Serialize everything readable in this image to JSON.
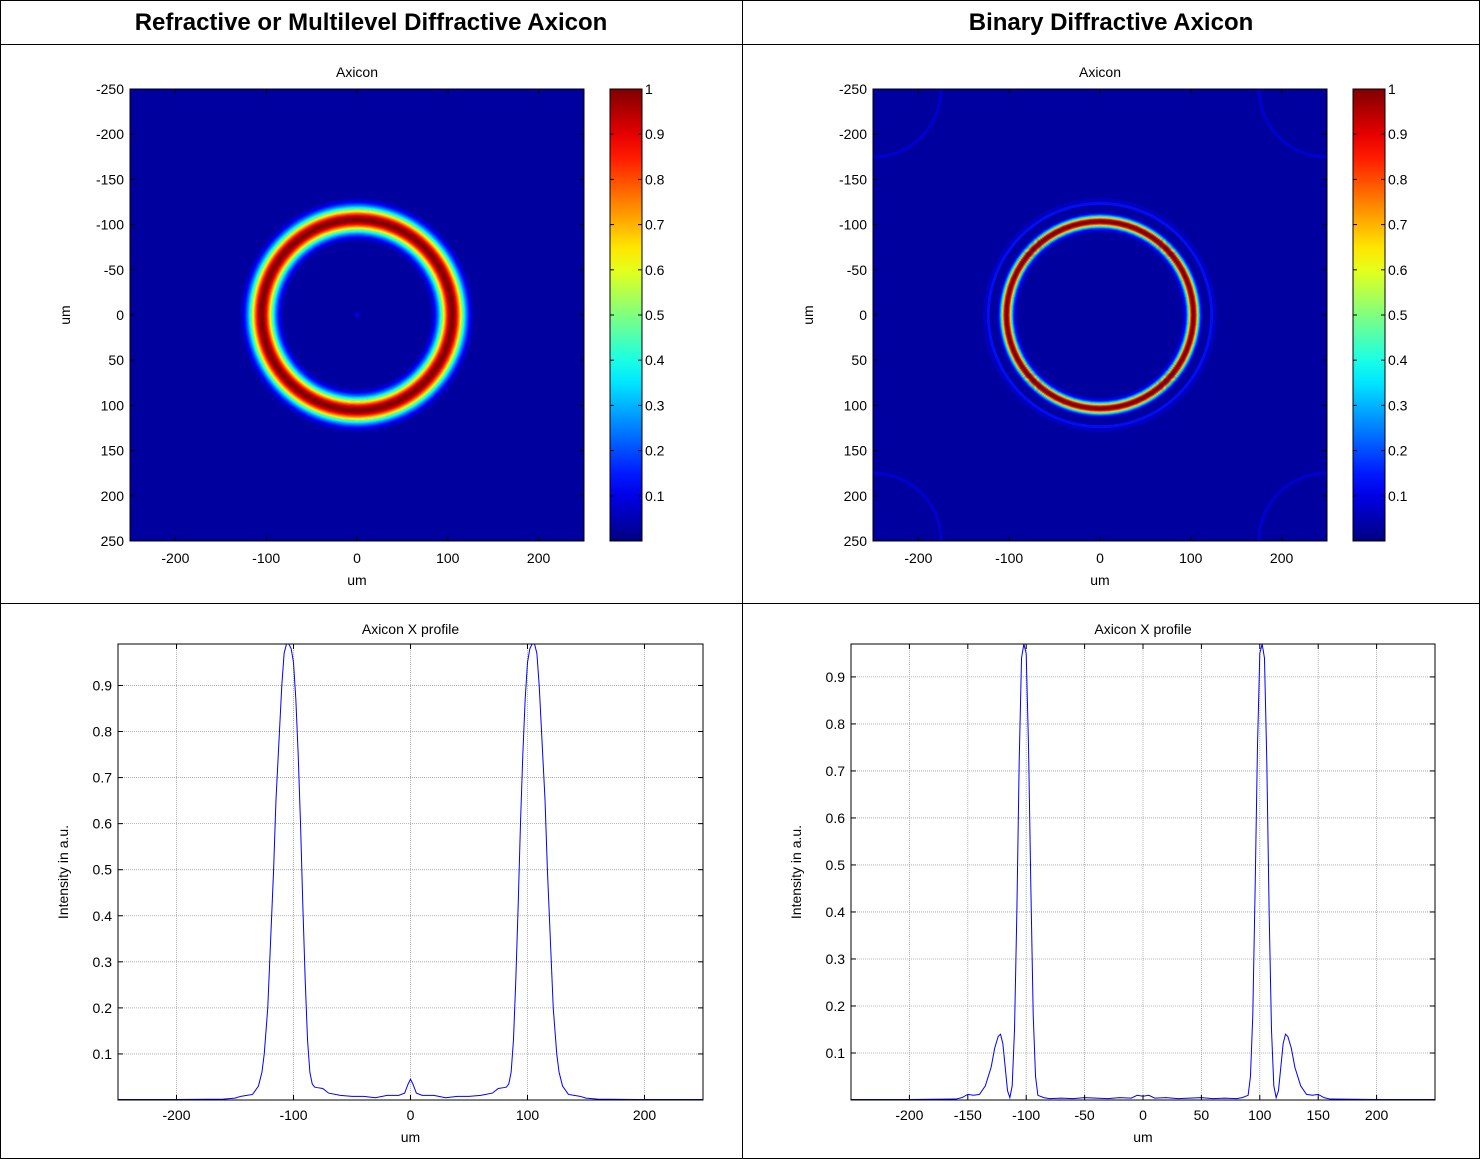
{
  "table": {
    "left_header": "Refractive or Multilevel Diffractive Axicon",
    "right_header": "Binary Diffractive Axicon"
  },
  "colors": {
    "profile_line": "#0000ff",
    "grid_line": "#a0a0a0",
    "jet_low": "#00008f",
    "jet_background": "#00009f",
    "jet_high": "#800000"
  },
  "chart_data": [
    {
      "id": "left-heatmap",
      "type": "heatmap",
      "title": "Axicon",
      "xlabel": "um",
      "ylabel": "um",
      "xlim": [
        -250,
        250
      ],
      "ylim": [
        -250,
        250
      ],
      "y_reversed": true,
      "x_ticks": [
        -200,
        -100,
        0,
        100,
        200
      ],
      "y_ticks": [
        -250,
        -200,
        -150,
        -100,
        -50,
        0,
        50,
        100,
        150,
        200,
        250
      ],
      "colormap": "jet",
      "colorbar": {
        "min": 0,
        "max": 1,
        "ticks": [
          0.1,
          0.2,
          0.3,
          0.4,
          0.5,
          0.6,
          0.7,
          0.8,
          0.9,
          1
        ],
        "tick_labels": [
          "0.1",
          "0.2",
          "0.3",
          "0.4",
          "0.5",
          "0.6",
          "0.7",
          "0.8",
          "0.9",
          "1"
        ]
      },
      "ring": {
        "center": [
          0,
          0
        ],
        "radius": 105,
        "width_fwhm": 22,
        "peak": 1.0,
        "side_ring_radius": null,
        "center_spot": 0.04
      },
      "background": 0.03
    },
    {
      "id": "right-heatmap",
      "type": "heatmap",
      "title": "Axicon",
      "xlabel": "um",
      "ylabel": "um",
      "xlim": [
        -250,
        250
      ],
      "ylim": [
        -250,
        250
      ],
      "y_reversed": true,
      "x_ticks": [
        -200,
        -100,
        0,
        100,
        200
      ],
      "y_ticks": [
        -250,
        -200,
        -150,
        -100,
        -50,
        0,
        50,
        100,
        150,
        200,
        250
      ],
      "colormap": "jet",
      "colorbar": {
        "min": 0,
        "max": 1,
        "ticks": [
          0.1,
          0.2,
          0.3,
          0.4,
          0.5,
          0.6,
          0.7,
          0.8,
          0.9,
          1
        ],
        "tick_labels": [
          "0.1",
          "0.2",
          "0.3",
          "0.4",
          "0.5",
          "0.6",
          "0.7",
          "0.8",
          "0.9",
          "1"
        ]
      },
      "ring": {
        "center": [
          0,
          0
        ],
        "radius": 103,
        "width_fwhm": 10,
        "peak": 1.0,
        "side_ring_radius": 123,
        "side_ring_peak": 0.14,
        "inner_side_ring_radius": 93,
        "inner_side_ring_peak": 0.1
      },
      "background": 0.03
    },
    {
      "id": "left-profile",
      "type": "line",
      "title": "Axicon X profile",
      "xlabel": "um",
      "ylabel": "Intensity in a.u.",
      "xlim": [
        -250,
        250
      ],
      "ylim": [
        0,
        0.99
      ],
      "x_ticks": [
        -200,
        -100,
        0,
        100,
        200
      ],
      "y_ticks": [
        0.1,
        0.2,
        0.3,
        0.4,
        0.5,
        0.6,
        0.7,
        0.8,
        0.9
      ],
      "grid": true,
      "series": [
        {
          "x": [
            -250,
            -200,
            -160,
            -150,
            -145,
            -140,
            -135,
            -130,
            -127,
            -125,
            -122,
            -120,
            -117,
            -115,
            -112,
            -110,
            -108,
            -106,
            -104,
            -102,
            -100,
            -98,
            -96,
            -94,
            -92,
            -90,
            -88,
            -86,
            -84,
            -82,
            -80,
            -75,
            -70,
            -60,
            -50,
            -40,
            -30,
            -20,
            -10,
            -5,
            -2,
            0,
            2,
            5,
            10,
            20,
            30,
            40,
            50,
            60,
            70,
            75,
            80,
            82,
            84,
            86,
            88,
            90,
            92,
            94,
            96,
            98,
            100,
            102,
            104,
            106,
            108,
            110,
            112,
            115,
            117,
            120,
            122,
            125,
            127,
            130,
            135,
            140,
            145,
            150,
            160,
            200,
            250
          ],
          "y": [
            0.001,
            0.001,
            0.002,
            0.004,
            0.008,
            0.01,
            0.012,
            0.03,
            0.06,
            0.1,
            0.2,
            0.32,
            0.5,
            0.65,
            0.8,
            0.9,
            0.97,
            0.99,
            0.99,
            0.98,
            0.95,
            0.87,
            0.75,
            0.6,
            0.42,
            0.26,
            0.13,
            0.06,
            0.035,
            0.028,
            0.027,
            0.025,
            0.015,
            0.01,
            0.008,
            0.008,
            0.005,
            0.01,
            0.01,
            0.015,
            0.035,
            0.045,
            0.035,
            0.015,
            0.01,
            0.01,
            0.005,
            0.008,
            0.008,
            0.01,
            0.015,
            0.025,
            0.027,
            0.028,
            0.035,
            0.06,
            0.13,
            0.26,
            0.42,
            0.6,
            0.75,
            0.87,
            0.95,
            0.98,
            0.99,
            0.99,
            0.97,
            0.9,
            0.8,
            0.65,
            0.5,
            0.32,
            0.2,
            0.1,
            0.06,
            0.03,
            0.012,
            0.01,
            0.008,
            0.004,
            0.002,
            0.001,
            0.001
          ]
        }
      ]
    },
    {
      "id": "right-profile",
      "type": "line",
      "title": "Axicon X profile",
      "xlabel": "um",
      "ylabel": "Intensity in a.u.",
      "xlim": [
        -250,
        250
      ],
      "ylim": [
        0,
        0.97
      ],
      "x_ticks": [
        -200,
        -150,
        -100,
        -50,
        0,
        50,
        100,
        150,
        200
      ],
      "y_ticks": [
        0.1,
        0.2,
        0.3,
        0.4,
        0.5,
        0.6,
        0.7,
        0.8,
        0.9
      ],
      "grid": true,
      "series": [
        {
          "x": [
            -250,
            -200,
            -160,
            -155,
            -150,
            -145,
            -140,
            -135,
            -130,
            -127,
            -124,
            -122,
            -120,
            -118,
            -116,
            -114,
            -112,
            -110,
            -108,
            -106,
            -104,
            -102,
            -100,
            -98,
            -96,
            -94,
            -92,
            -90,
            -85,
            -80,
            -70,
            -60,
            -50,
            -40,
            -30,
            -20,
            -10,
            -5,
            0,
            5,
            10,
            20,
            30,
            40,
            50,
            60,
            70,
            80,
            85,
            90,
            92,
            94,
            96,
            98,
            100,
            102,
            104,
            106,
            108,
            110,
            112,
            114,
            116,
            118,
            120,
            122,
            124,
            127,
            130,
            135,
            140,
            145,
            150,
            155,
            160,
            200,
            250
          ],
          "y": [
            0.001,
            0.001,
            0.002,
            0.005,
            0.012,
            0.01,
            0.012,
            0.03,
            0.07,
            0.11,
            0.135,
            0.14,
            0.12,
            0.07,
            0.02,
            0.005,
            0.03,
            0.15,
            0.4,
            0.72,
            0.94,
            0.97,
            0.95,
            0.75,
            0.45,
            0.18,
            0.05,
            0.01,
            0.005,
            0.003,
            0.004,
            0.003,
            0.005,
            0.004,
            0.003,
            0.005,
            0.004,
            0.01,
            0.008,
            0.01,
            0.004,
            0.005,
            0.003,
            0.004,
            0.005,
            0.003,
            0.004,
            0.003,
            0.005,
            0.01,
            0.05,
            0.18,
            0.45,
            0.75,
            0.95,
            0.97,
            0.94,
            0.72,
            0.4,
            0.15,
            0.03,
            0.005,
            0.02,
            0.07,
            0.12,
            0.14,
            0.135,
            0.11,
            0.07,
            0.03,
            0.012,
            0.01,
            0.012,
            0.005,
            0.002,
            0.001,
            0.001
          ]
        }
      ]
    }
  ]
}
